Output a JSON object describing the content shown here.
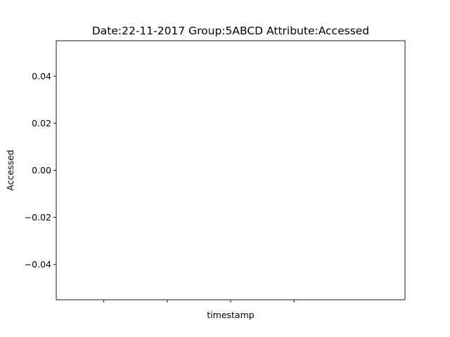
{
  "chart_data": {
    "type": "line",
    "title": "Date:22-11-2017  Group:5ABCD Attribute:Accessed",
    "xlabel": "timestamp",
    "ylabel": "Accessed",
    "ylim": [
      -0.055,
      0.055
    ],
    "y_ticks": [
      {
        "value": 0.04,
        "label": "0.04"
      },
      {
        "value": 0.02,
        "label": "0.02"
      },
      {
        "value": 0.0,
        "label": "0.00"
      },
      {
        "value": -0.02,
        "label": "−0.02"
      },
      {
        "value": -0.04,
        "label": "−0.04"
      }
    ],
    "x_tick_count": 4,
    "series": [
      {
        "x": [],
        "values": []
      }
    ],
    "grid": false,
    "legend": "none",
    "colors": {
      "axis": "#000000",
      "background": "#ffffff"
    }
  }
}
